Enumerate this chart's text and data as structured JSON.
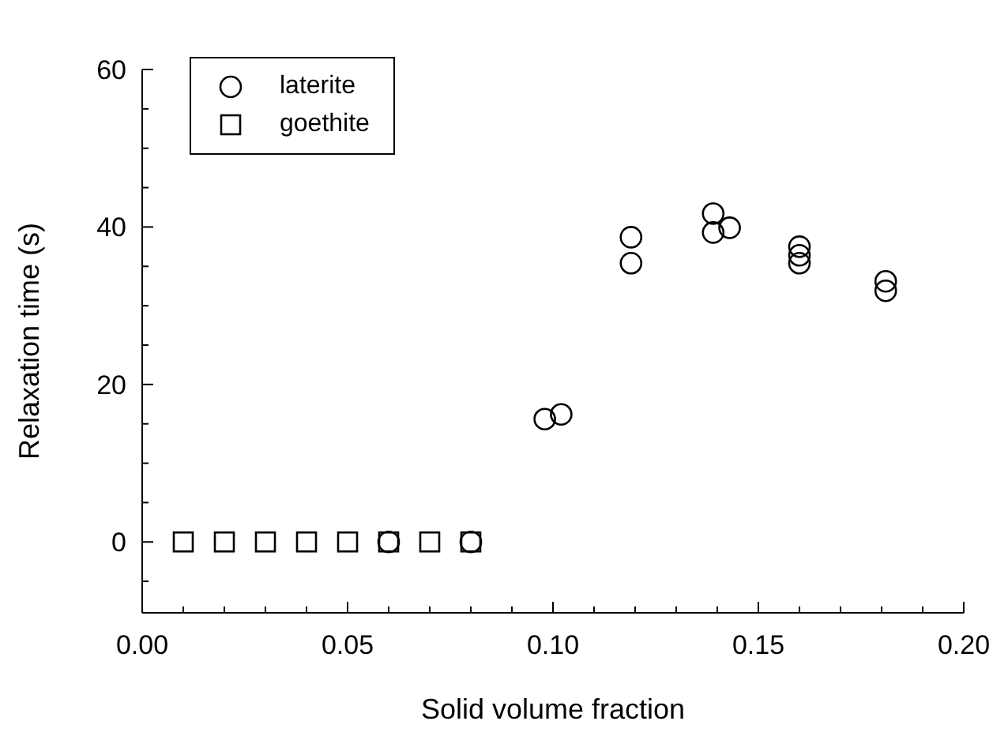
{
  "chart_data": {
    "type": "scatter",
    "xlabel": "Solid volume fraction",
    "ylabel": "Relaxation time (s)",
    "xlim": [
      0,
      0.2
    ],
    "ylim": [
      -9,
      60
    ],
    "xticks": [
      {
        "value": 0,
        "label": "0.00"
      },
      {
        "value": 0.01,
        "label": null
      },
      {
        "value": 0.02,
        "label": null
      },
      {
        "value": 0.03,
        "label": null
      },
      {
        "value": 0.04,
        "label": null
      },
      {
        "value": 0.05,
        "label": "0.05"
      },
      {
        "value": 0.06,
        "label": null
      },
      {
        "value": 0.07,
        "label": null
      },
      {
        "value": 0.08,
        "label": null
      },
      {
        "value": 0.09,
        "label": null
      },
      {
        "value": 0.1,
        "label": "0.10"
      },
      {
        "value": 0.11,
        "label": null
      },
      {
        "value": 0.12,
        "label": null
      },
      {
        "value": 0.13,
        "label": null
      },
      {
        "value": 0.14,
        "label": null
      },
      {
        "value": 0.15,
        "label": "0.15"
      },
      {
        "value": 0.16,
        "label": null
      },
      {
        "value": 0.17,
        "label": null
      },
      {
        "value": 0.18,
        "label": null
      },
      {
        "value": 0.19,
        "label": null
      },
      {
        "value": 0.2,
        "label": "0.20"
      }
    ],
    "yticks": [
      {
        "value": -5,
        "label": null
      },
      0,
      {
        "value": 5,
        "label": null
      },
      {
        "value": 10,
        "label": null
      },
      {
        "value": 15,
        "label": null
      },
      20,
      {
        "value": 25,
        "label": null
      },
      {
        "value": 30,
        "label": null
      },
      {
        "value": 35,
        "label": null
      },
      40,
      {
        "value": 45,
        "label": null
      },
      {
        "value": 50,
        "label": null
      },
      {
        "value": 55,
        "label": null
      },
      60
    ],
    "legend": "top left",
    "grid": false,
    "series": [
      {
        "name": "laterite",
        "color": "#000000",
        "marker": "circle",
        "x": [
          0.06,
          0.08,
          0.098,
          0.102,
          0.119,
          0.119,
          0.139,
          0.139,
          0.143,
          0.16,
          0.16,
          0.16,
          0.181,
          0.181
        ],
        "values": [
          0,
          0,
          15.6,
          16.2,
          38.7,
          35.4,
          41.7,
          39.3,
          39.9,
          37.5,
          36.4,
          35.4,
          33.1,
          31.9
        ]
      },
      {
        "name": "goethite",
        "color": "#000000",
        "marker": "square",
        "x": [
          0.01,
          0.02,
          0.03,
          0.04,
          0.05,
          0.06,
          0.07,
          0.08
        ],
        "values": [
          0,
          0,
          0,
          0,
          0,
          0,
          0,
          0
        ]
      }
    ]
  }
}
